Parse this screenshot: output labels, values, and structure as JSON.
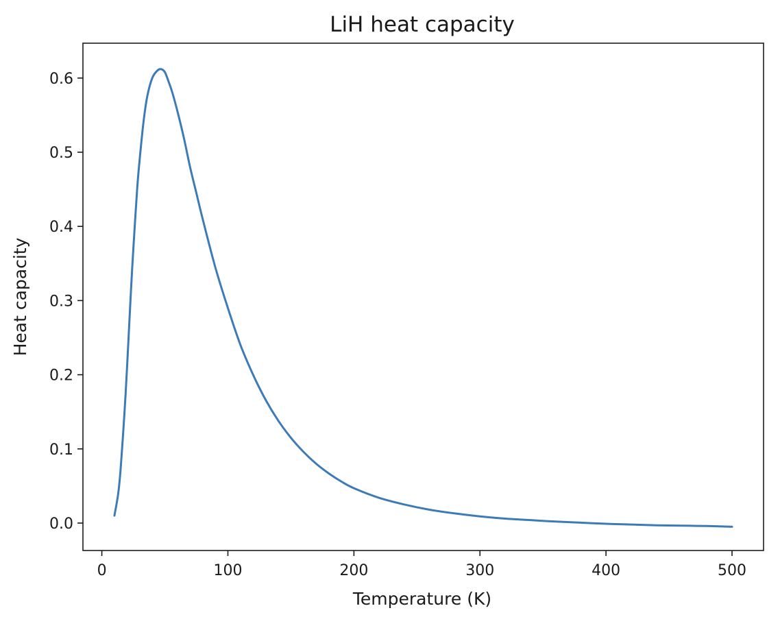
{
  "chart_data": {
    "type": "line",
    "title": "LiH heat capacity",
    "xlabel": "Temperature (K)",
    "ylabel": "Heat capacity",
    "xlim": [
      -15,
      525
    ],
    "ylim": [
      -0.037,
      0.647
    ],
    "xticks": [
      0,
      100,
      200,
      300,
      400,
      500
    ],
    "xtick_labels": [
      "0",
      "100",
      "200",
      "300",
      "400",
      "500"
    ],
    "yticks": [
      0.0,
      0.1,
      0.2,
      0.3,
      0.4,
      0.5,
      0.6
    ],
    "ytick_labels": [
      "0.0",
      "0.1",
      "0.2",
      "0.3",
      "0.4",
      "0.5",
      "0.6"
    ],
    "grid": false,
    "series": [
      {
        "color": "#3d7ab8",
        "x": [
          10,
          13,
          15,
          18,
          20,
          23,
          25,
          28,
          30,
          33,
          36,
          40,
          44,
          47,
          50,
          53,
          56,
          60,
          65,
          70,
          75,
          80,
          90,
          100,
          110,
          120,
          130,
          140,
          150,
          160,
          170,
          180,
          190,
          200,
          220,
          240,
          260,
          280,
          300,
          320,
          340,
          360,
          380,
          400,
          420,
          440,
          460,
          480,
          500
        ],
        "y": [
          0.01,
          0.04,
          0.075,
          0.15,
          0.21,
          0.31,
          0.37,
          0.45,
          0.49,
          0.54,
          0.575,
          0.6,
          0.61,
          0.612,
          0.608,
          0.595,
          0.58,
          0.555,
          0.52,
          0.48,
          0.445,
          0.41,
          0.345,
          0.29,
          0.24,
          0.2,
          0.166,
          0.138,
          0.115,
          0.096,
          0.08,
          0.067,
          0.056,
          0.047,
          0.034,
          0.025,
          0.018,
          0.013,
          0.009,
          0.006,
          0.004,
          0.002,
          0.0005,
          -0.001,
          -0.002,
          -0.003,
          -0.0035,
          -0.004,
          -0.005
        ]
      }
    ]
  }
}
